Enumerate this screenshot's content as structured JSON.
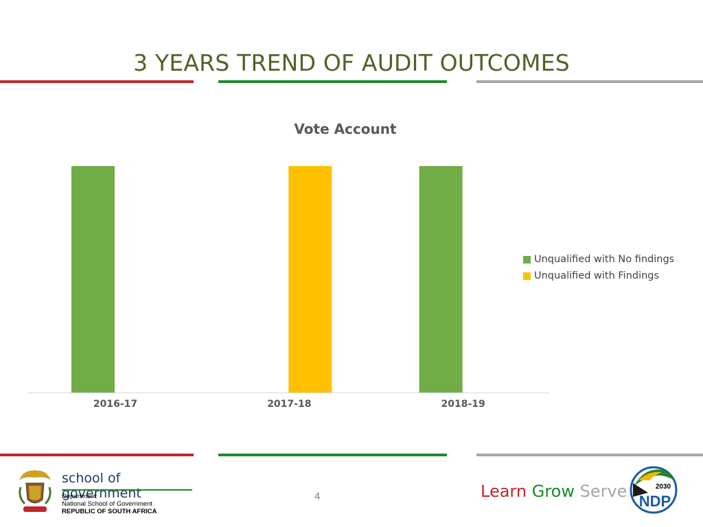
{
  "slide": {
    "title": "3 YEARS TREND OF AUDIT OUTCOMES",
    "page_number": "4"
  },
  "chart_data": {
    "type": "bar",
    "title": "Vote Account",
    "categories": [
      "2016-17",
      "2017-18",
      "2018-19"
    ],
    "series": [
      {
        "name": "Unqualified with No findings",
        "values": [
          1,
          0,
          1
        ],
        "color": "#70ad47"
      },
      {
        "name": "Unqualified with Findings",
        "values": [
          0,
          1,
          0
        ],
        "color": "#ffc000"
      }
    ],
    "xlabel": "",
    "ylabel": "",
    "ylim": [
      0,
      1
    ],
    "grid": false,
    "legend_position": "right"
  },
  "footer": {
    "logo": {
      "brand": "school of government",
      "dept_line1": "Department:",
      "dept_line2": "National School of Government",
      "dept_line3": "REPUBLIC OF SOUTH AFRICA"
    },
    "slogan": {
      "learn": "Learn",
      "grow": "Grow",
      "serve": "Serve"
    },
    "ndp_logo": {
      "year": "2030",
      "text": "NDP"
    }
  },
  "colors": {
    "title": "#4f6228",
    "rule_red": "#c0262c",
    "rule_green": "#1a8a2a",
    "rule_grey": "#a6a6a6"
  }
}
